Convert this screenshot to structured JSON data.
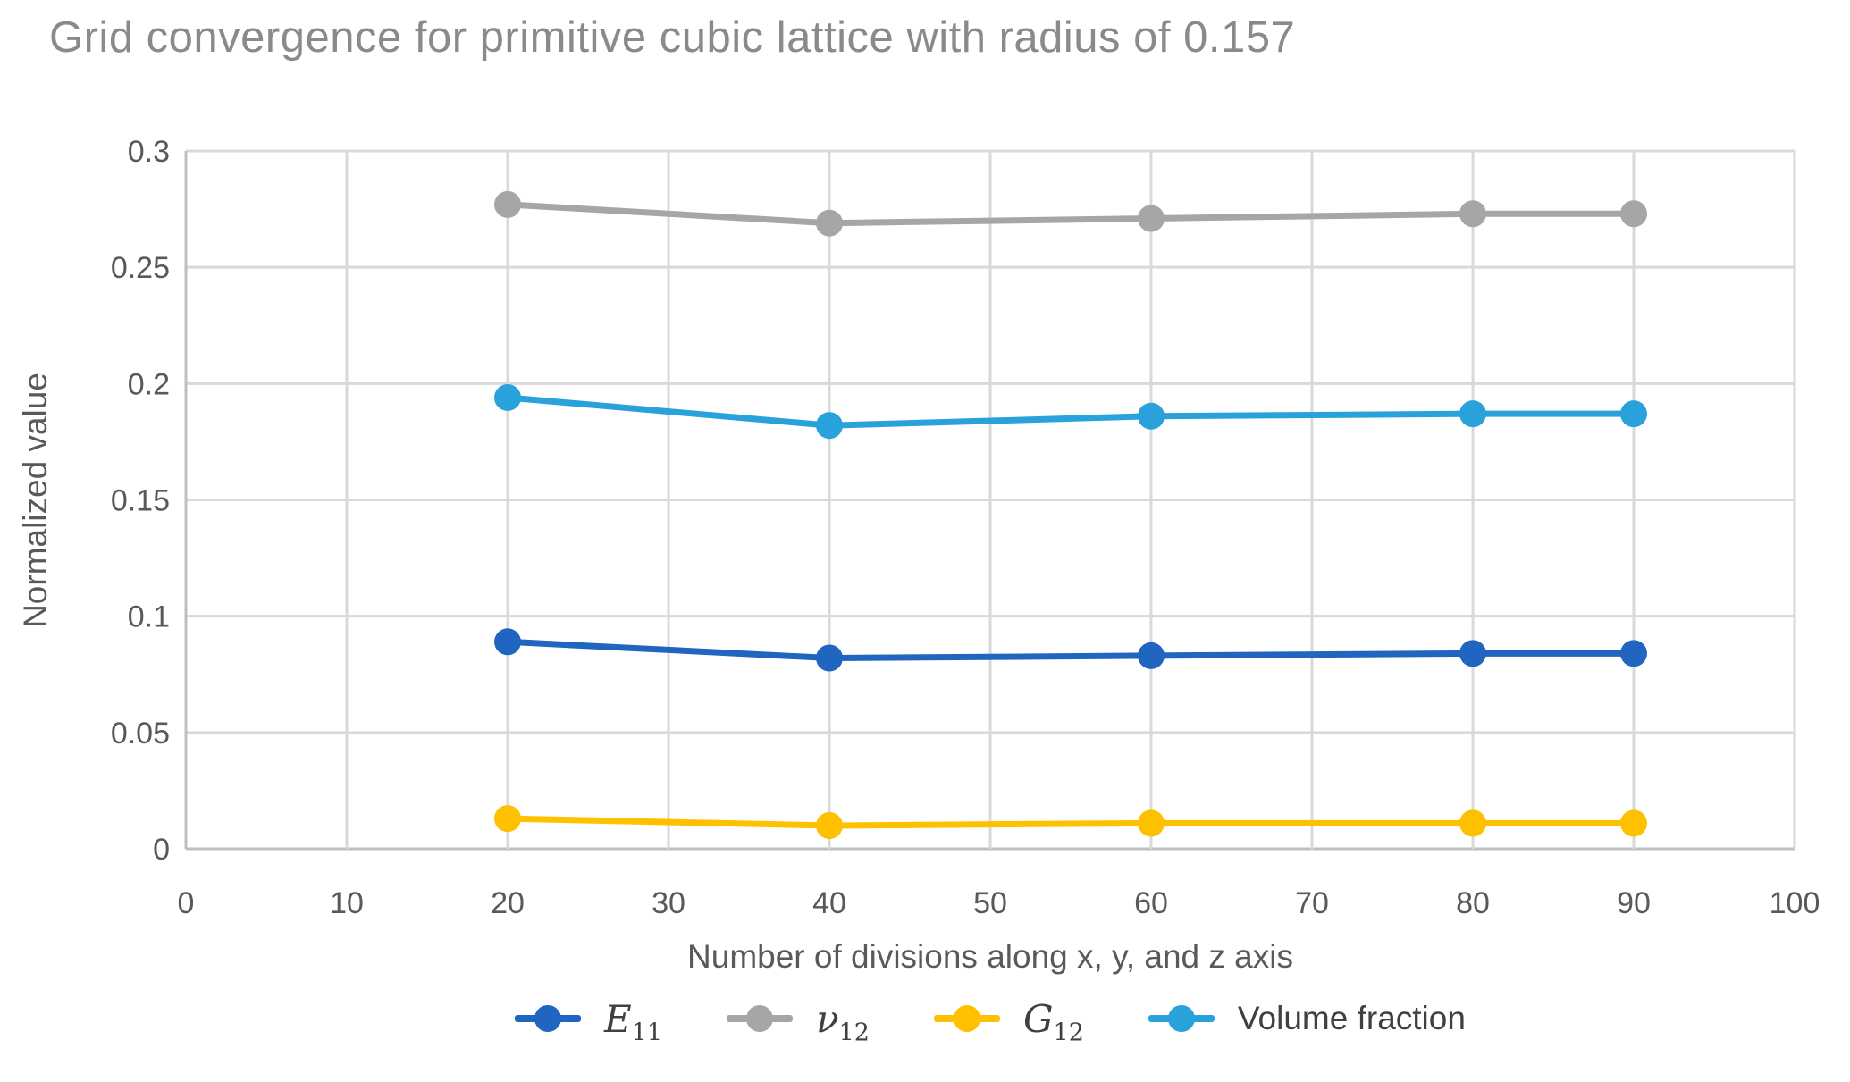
{
  "chart_data": {
    "type": "line",
    "title": "Grid convergence for primitive cubic lattice with radius of 0.157",
    "xlabel": "Number of divisions along x, y, and z axis",
    "ylabel": "Normalized value",
    "xlim": [
      0,
      100
    ],
    "ylim": [
      0,
      0.3
    ],
    "grid": true,
    "legend_position": "bottom",
    "x_ticks": [
      0,
      10,
      20,
      30,
      40,
      50,
      60,
      70,
      80,
      90,
      100
    ],
    "y_ticks": [
      {
        "value": 0,
        "label": "0"
      },
      {
        "value": 0.05,
        "label": "0.05"
      },
      {
        "value": 0.1,
        "label": "0.1"
      },
      {
        "value": 0.15,
        "label": "0.15"
      },
      {
        "value": 0.2,
        "label": "0.2"
      },
      {
        "value": 0.25,
        "label": "0.25"
      },
      {
        "value": 0.3,
        "label": "0.3"
      }
    ],
    "x": [
      20,
      40,
      60,
      80,
      90
    ],
    "series": [
      {
        "name": "E11",
        "legend_symbol": "E",
        "legend_subscript": "11",
        "legend_italic": true,
        "color": "#2065BF",
        "values": [
          0.089,
          0.082,
          0.083,
          0.084,
          0.084
        ]
      },
      {
        "name": "nu12",
        "legend_symbol": "ν",
        "legend_subscript": "12",
        "legend_italic": true,
        "color": "#A6A6A6",
        "values": [
          0.277,
          0.269,
          0.271,
          0.273,
          0.273
        ]
      },
      {
        "name": "G12",
        "legend_symbol": "G",
        "legend_subscript": "12",
        "legend_italic": true,
        "color": "#FFC000",
        "values": [
          0.013,
          0.01,
          0.011,
          0.011,
          0.011
        ]
      },
      {
        "name": "Volume fraction",
        "legend_symbol": "Volume fraction",
        "legend_subscript": "",
        "legend_italic": false,
        "color": "#29A2DC",
        "values": [
          0.194,
          0.182,
          0.186,
          0.187,
          0.187
        ]
      }
    ],
    "colors": {
      "title": "#8A8A8A",
      "axis_text": "#595959",
      "legend_text": "#404040",
      "gridline": "#D9D9D9",
      "axis_line": "#BFBFBF",
      "background": "#FFFFFF"
    }
  }
}
